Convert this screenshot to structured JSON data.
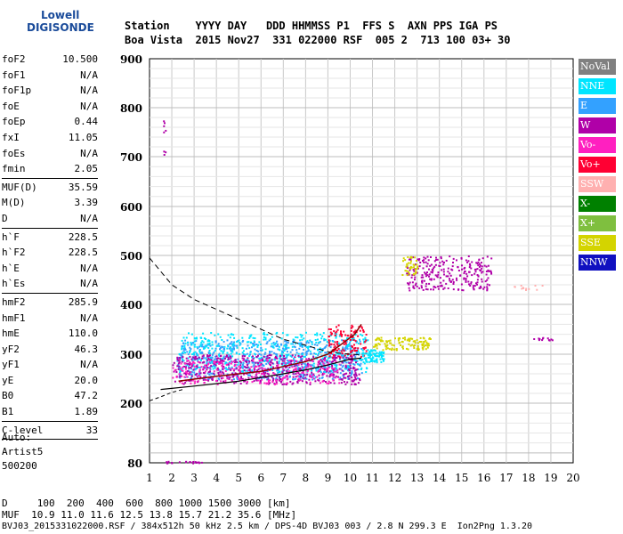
{
  "logo": {
    "line1": "Lowell",
    "line2": "DIGISONDE"
  },
  "header": {
    "row1": "Station    YYYY DAY   DDD HHMMSS P1  FFS S  AXN PPS IGA PS",
    "row2": "Boa Vista  2015 Nov27  331 022000 RSF  005 2  713 100 03+ 30"
  },
  "params": {
    "group1": [
      {
        "k": "foF2",
        "v": "10.500"
      },
      {
        "k": "foF1",
        "v": "N/A"
      },
      {
        "k": "foF1p",
        "v": "N/A"
      },
      {
        "k": "foE",
        "v": "N/A"
      },
      {
        "k": "foEp",
        "v": "0.44"
      },
      {
        "k": "fxI",
        "v": "11.05"
      },
      {
        "k": "foEs",
        "v": "N/A"
      },
      {
        "k": "fmin",
        "v": "2.05"
      }
    ],
    "group2": [
      {
        "k": "MUF(D)",
        "v": "35.59"
      },
      {
        "k": "M(D)",
        "v": "3.39"
      },
      {
        "k": "D",
        "v": "N/A"
      }
    ],
    "group3": [
      {
        "k": "h`F",
        "v": "228.5"
      },
      {
        "k": "h`F2",
        "v": "228.5"
      },
      {
        "k": "h`E",
        "v": "N/A"
      },
      {
        "k": "h`Es",
        "v": "N/A"
      }
    ],
    "group4": [
      {
        "k": "hmF2",
        "v": "285.9"
      },
      {
        "k": "hmF1",
        "v": "N/A"
      },
      {
        "k": "hmE",
        "v": "110.0"
      },
      {
        "k": "yF2",
        "v": "46.3"
      },
      {
        "k": "yF1",
        "v": "N/A"
      },
      {
        "k": "yE",
        "v": "20.0"
      },
      {
        "k": "B0",
        "v": "47.2"
      },
      {
        "k": "B1",
        "v": "1.89"
      }
    ],
    "group5": [
      {
        "k": "C-level",
        "v": "33"
      }
    ]
  },
  "auto": {
    "line1": "Auto:",
    "line2": "Artist5",
    "line3": "500200"
  },
  "footer": {
    "row1": "D     100  200  400  600  800 1000 1500 3000 [km]",
    "row2": "MUF  10.9 11.0 11.6 12.5 13.8 15.7 21.2 35.6 [MHz]",
    "row3": "BVJ03_2015331022000.RSF / 384x512h 50 kHz 2.5 km / DPS-4D BVJ03 003 / 2.8 N 299.3 E  Ion2Png 1.3.20"
  },
  "legend": [
    {
      "label": "NoVal",
      "color": "#808080"
    },
    {
      "label": "NNE",
      "color": "#00e5ff"
    },
    {
      "label": "E",
      "color": "#33a1ff"
    },
    {
      "label": "W",
      "color": "#b000a8"
    },
    {
      "label": "Vo-",
      "color": "#ff20c0"
    },
    {
      "label": "Vo+",
      "color": "#ff0033"
    },
    {
      "label": "SSW",
      "color": "#ffb0b0"
    },
    {
      "label": "X-",
      "color": "#008000"
    },
    {
      "label": "X+",
      "color": "#7fbf3f"
    },
    {
      "label": "SSE",
      "color": "#d4d400"
    },
    {
      "label": "NNW",
      "color": "#1010c0"
    }
  ],
  "chart_data": {
    "type": "scatter",
    "x_unit": "MHz",
    "y_unit": "km",
    "xlim": [
      1,
      20
    ],
    "ylim": [
      80,
      900
    ],
    "x_ticks": [
      1,
      2,
      3,
      4,
      5,
      6,
      7,
      8,
      9,
      10,
      11,
      12,
      13,
      14,
      15,
      16,
      17,
      18,
      19,
      20
    ],
    "y_ticks": [
      80,
      200,
      300,
      400,
      500,
      600,
      700,
      800,
      900
    ],
    "y_tick_labels": [
      "80",
      "200",
      "300",
      "400",
      "500",
      "600",
      "700",
      "800",
      "900"
    ],
    "grid": true,
    "clusters": [
      {
        "color": "#33a1ff",
        "xrange": [
          2.2,
          10.5
        ],
        "yrange": [
          250,
          330
        ],
        "n": 700
      },
      {
        "color": "#00e5ff",
        "xrange": [
          2.3,
          10.8
        ],
        "yrange": [
          265,
          345
        ],
        "n": 450
      },
      {
        "color": "#b000a8",
        "xrange": [
          2.0,
          10.4
        ],
        "yrange": [
          240,
          300
        ],
        "n": 500
      },
      {
        "color": "#ff20c0",
        "xrange": [
          2.0,
          9.5
        ],
        "yrange": [
          240,
          290
        ],
        "n": 250
      },
      {
        "color": "#ff0033",
        "xrange": [
          9.0,
          10.7
        ],
        "yrange": [
          295,
          360
        ],
        "n": 120
      },
      {
        "color": "#b000a8",
        "xrange": [
          12.5,
          16.3
        ],
        "yrange": [
          430,
          500
        ],
        "n": 260
      },
      {
        "color": "#d4d400",
        "xrange": [
          11.0,
          13.6
        ],
        "yrange": [
          310,
          335
        ],
        "n": 120
      },
      {
        "color": "#d4d400",
        "xrange": [
          12.3,
          13.0
        ],
        "yrange": [
          460,
          500
        ],
        "n": 40
      },
      {
        "color": "#00e5ff",
        "xrange": [
          10.5,
          11.5
        ],
        "yrange": [
          285,
          310
        ],
        "n": 80
      },
      {
        "color": "#b000a8",
        "xrange": [
          1.6,
          1.7
        ],
        "yrange": [
          705,
          775
        ],
        "n": 8
      },
      {
        "color": "#b000a8",
        "xrange": [
          18.2,
          19.1
        ],
        "yrange": [
          328,
          335
        ],
        "n": 12
      },
      {
        "color": "#ffb0b0",
        "xrange": [
          17.3,
          18.6
        ],
        "yrange": [
          430,
          445
        ],
        "n": 12
      },
      {
        "color": "#b000a8",
        "xrange": [
          1.7,
          3.5
        ],
        "yrange": [
          80,
          84
        ],
        "n": 20
      }
    ],
    "dashed_curve": {
      "x": [
        1.0,
        2.0,
        3.0,
        4.0,
        5.0,
        6.0,
        7.0,
        8.0,
        9.0,
        10.0,
        10.5
      ],
      "y": [
        495,
        440,
        410,
        390,
        370,
        350,
        330,
        318,
        305,
        300,
        299
      ]
    },
    "profile_curve": {
      "x": [
        1.5,
        3.0,
        5.0,
        7.0,
        8.0,
        9.0,
        10.0,
        10.5
      ],
      "y": [
        228,
        235,
        245,
        260,
        268,
        278,
        290,
        292
      ]
    },
    "trace_curve": {
      "x": [
        2.3,
        4.0,
        6.0,
        8.0,
        9.0,
        9.6,
        10.2,
        10.5
      ],
      "y": [
        245,
        255,
        265,
        285,
        300,
        320,
        340,
        360
      ]
    },
    "lower_dashed": {
      "x": [
        1.0,
        1.5,
        2.0,
        2.5
      ],
      "y": [
        205,
        213,
        222,
        228
      ]
    }
  }
}
